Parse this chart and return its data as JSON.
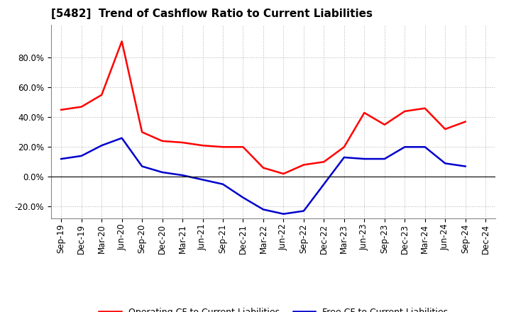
{
  "title": "[5482]  Trend of Cashflow Ratio to Current Liabilities",
  "x_labels": [
    "Sep-19",
    "Dec-19",
    "Mar-20",
    "Jun-20",
    "Sep-20",
    "Dec-20",
    "Mar-21",
    "Jun-21",
    "Sep-21",
    "Dec-21",
    "Mar-22",
    "Jun-22",
    "Sep-22",
    "Dec-22",
    "Mar-23",
    "Jun-23",
    "Sep-23",
    "Dec-23",
    "Mar-24",
    "Jun-24",
    "Sep-24",
    "Dec-24"
  ],
  "operating_cf": [
    0.45,
    0.47,
    0.55,
    0.91,
    0.3,
    0.24,
    0.23,
    0.21,
    0.2,
    0.2,
    0.06,
    0.02,
    0.08,
    0.1,
    0.2,
    0.43,
    0.35,
    0.44,
    0.46,
    0.32,
    0.37,
    null
  ],
  "free_cf": [
    0.12,
    0.14,
    0.21,
    0.26,
    0.07,
    0.03,
    0.01,
    -0.02,
    -0.05,
    -0.14,
    -0.22,
    -0.25,
    -0.23,
    -0.05,
    0.13,
    0.12,
    0.12,
    0.2,
    0.2,
    0.09,
    0.07,
    null
  ],
  "operating_color": "#ff0000",
  "free_color": "#0000cc",
  "ylim": [
    -0.28,
    1.02
  ],
  "yticks": [
    -0.2,
    0.0,
    0.2,
    0.4,
    0.6,
    0.8
  ],
  "background_color": "#ffffff",
  "grid_color": "#aaaaaa",
  "legend_op": "Operating CF to Current Liabilities",
  "legend_free": "Free CF to Current Liabilities",
  "title_fontsize": 11,
  "tick_fontsize": 8.5,
  "legend_fontsize": 9
}
